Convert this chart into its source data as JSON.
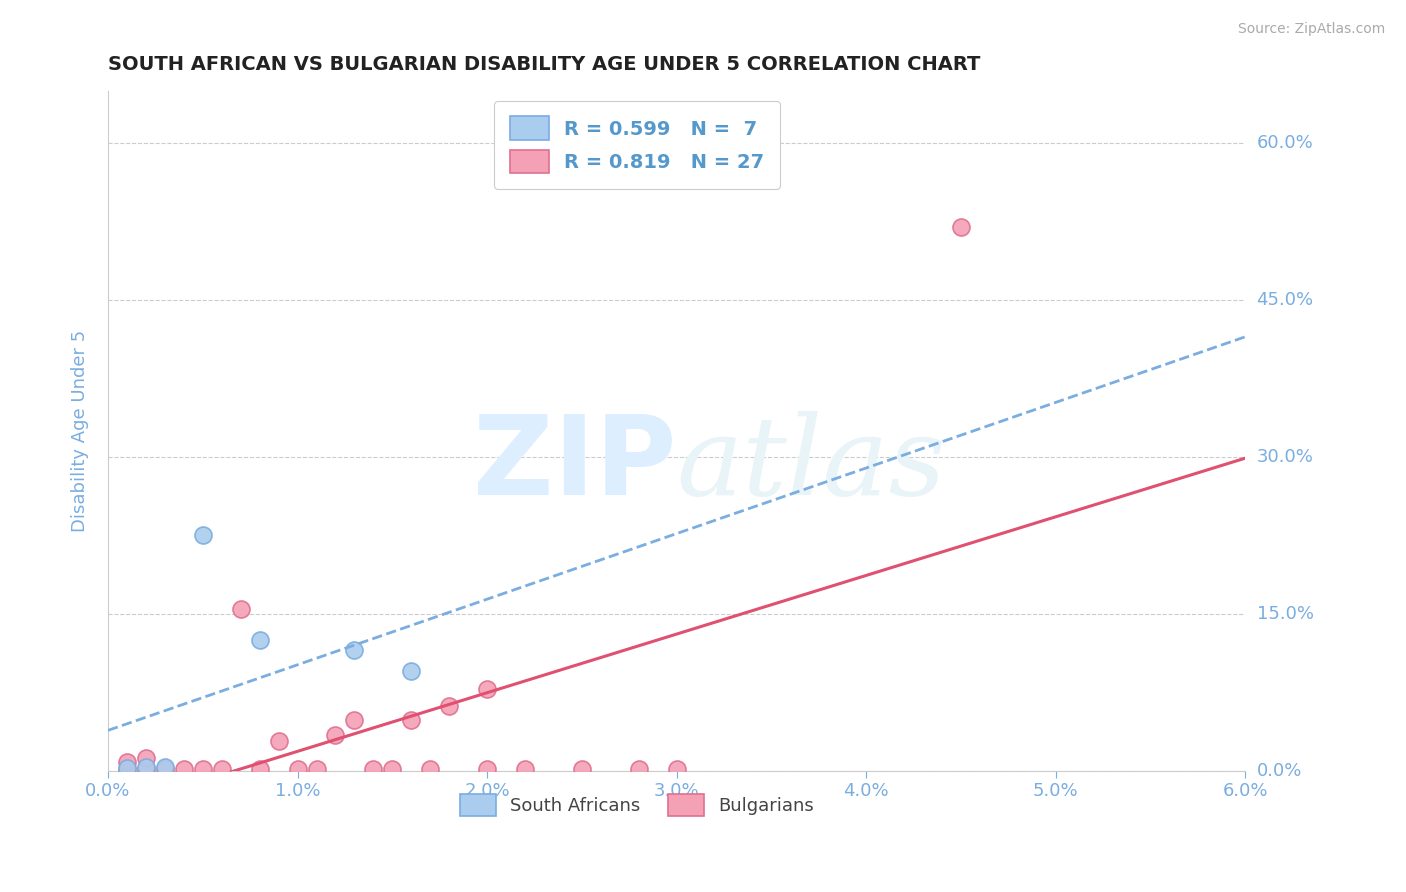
{
  "title": "SOUTH AFRICAN VS BULGARIAN DISABILITY AGE UNDER 5 CORRELATION CHART",
  "source": "Source: ZipAtlas.com",
  "ylabel": "Disability Age Under 5",
  "xlim": [
    0.0,
    0.06
  ],
  "ylim": [
    0.0,
    0.65
  ],
  "xtick_positions": [
    0.0,
    0.01,
    0.02,
    0.03,
    0.04,
    0.05,
    0.06
  ],
  "xticklabels": [
    "0.0%",
    "1.0%",
    "2.0%",
    "3.0%",
    "4.0%",
    "5.0%",
    "6.0%"
  ],
  "ytick_positions": [
    0.0,
    0.15,
    0.3,
    0.45,
    0.6
  ],
  "ytick_labels": [
    "0.0%",
    "15.0%",
    "30.0%",
    "45.0%",
    "60.0%"
  ],
  "grid_color": "#cccccc",
  "background_color": "#ffffff",
  "title_color": "#222222",
  "axis_label_color": "#7aade0",
  "tick_label_color": "#7aade0",
  "watermark_color": "#ddeeff",
  "south_africans": {
    "x": [
      0.001,
      0.002,
      0.003,
      0.005,
      0.008,
      0.013,
      0.016
    ],
    "y": [
      0.003,
      0.004,
      0.004,
      0.225,
      0.125,
      0.115,
      0.095
    ],
    "color": "#aaccee",
    "edge_color": "#7aade0",
    "R": 0.599,
    "N": 7,
    "label": "South Africans",
    "trend_color": "#7aade0",
    "trend_style": "--"
  },
  "bulgarians": {
    "x": [
      0.001,
      0.001,
      0.002,
      0.002,
      0.003,
      0.004,
      0.005,
      0.006,
      0.007,
      0.008,
      0.009,
      0.01,
      0.011,
      0.012,
      0.013,
      0.014,
      0.015,
      0.016,
      0.017,
      0.018,
      0.02,
      0.02,
      0.022,
      0.025,
      0.028,
      0.03,
      0.045
    ],
    "y": [
      0.002,
      0.008,
      0.002,
      0.012,
      0.002,
      0.002,
      0.002,
      0.002,
      0.155,
      0.002,
      0.028,
      0.002,
      0.002,
      0.034,
      0.048,
      0.002,
      0.002,
      0.048,
      0.002,
      0.062,
      0.002,
      0.078,
      0.002,
      0.002,
      0.002,
      0.002,
      0.52
    ],
    "color": "#f4a0b5",
    "edge_color": "#e07090",
    "R": 0.819,
    "N": 27,
    "label": "Bulgarians",
    "trend_color": "#e05070",
    "trend_style": "-"
  },
  "sa_trend_x": [
    0.0,
    0.06
  ],
  "bg_trend_x": [
    0.0,
    0.06
  ]
}
